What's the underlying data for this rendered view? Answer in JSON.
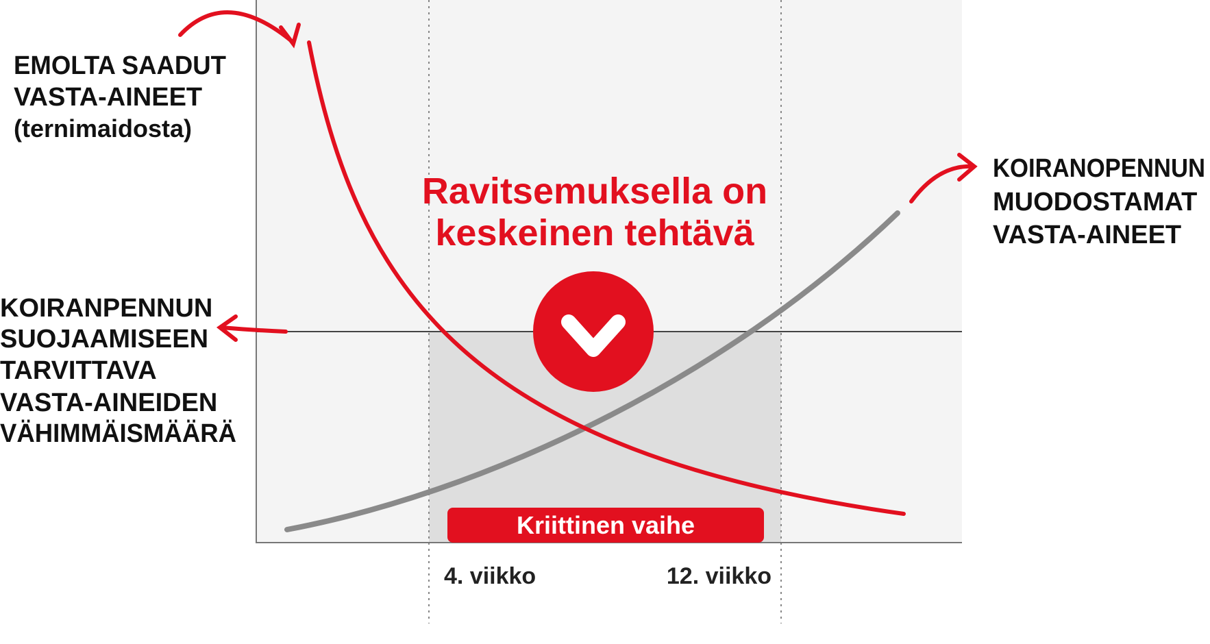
{
  "emo_label": {
    "lines": [
      "EMOLTA SAADUT",
      "VASTA-AINEET"
    ],
    "note": "(ternimaidosta)"
  },
  "pup_label": {
    "lines": [
      "KOIRANOPENNUN",
      "MUODOSTAMAT",
      "VASTA-AINEET"
    ]
  },
  "threshold_label": {
    "lines": [
      "KOIRANPENNUN",
      "SUOJAAMISEEN",
      "TARVITTAVA",
      "VASTA-AINEIDEN",
      "VÄHIMMÄISMÄÄRÄ"
    ]
  },
  "center_title": {
    "lines": [
      "Ravitsemuksella on",
      "keskeinen tehtävä"
    ]
  },
  "critical_phase": "Kriittinen vaihe",
  "x_labels": [
    "4. viikko",
    "12. viikko"
  ]
}
